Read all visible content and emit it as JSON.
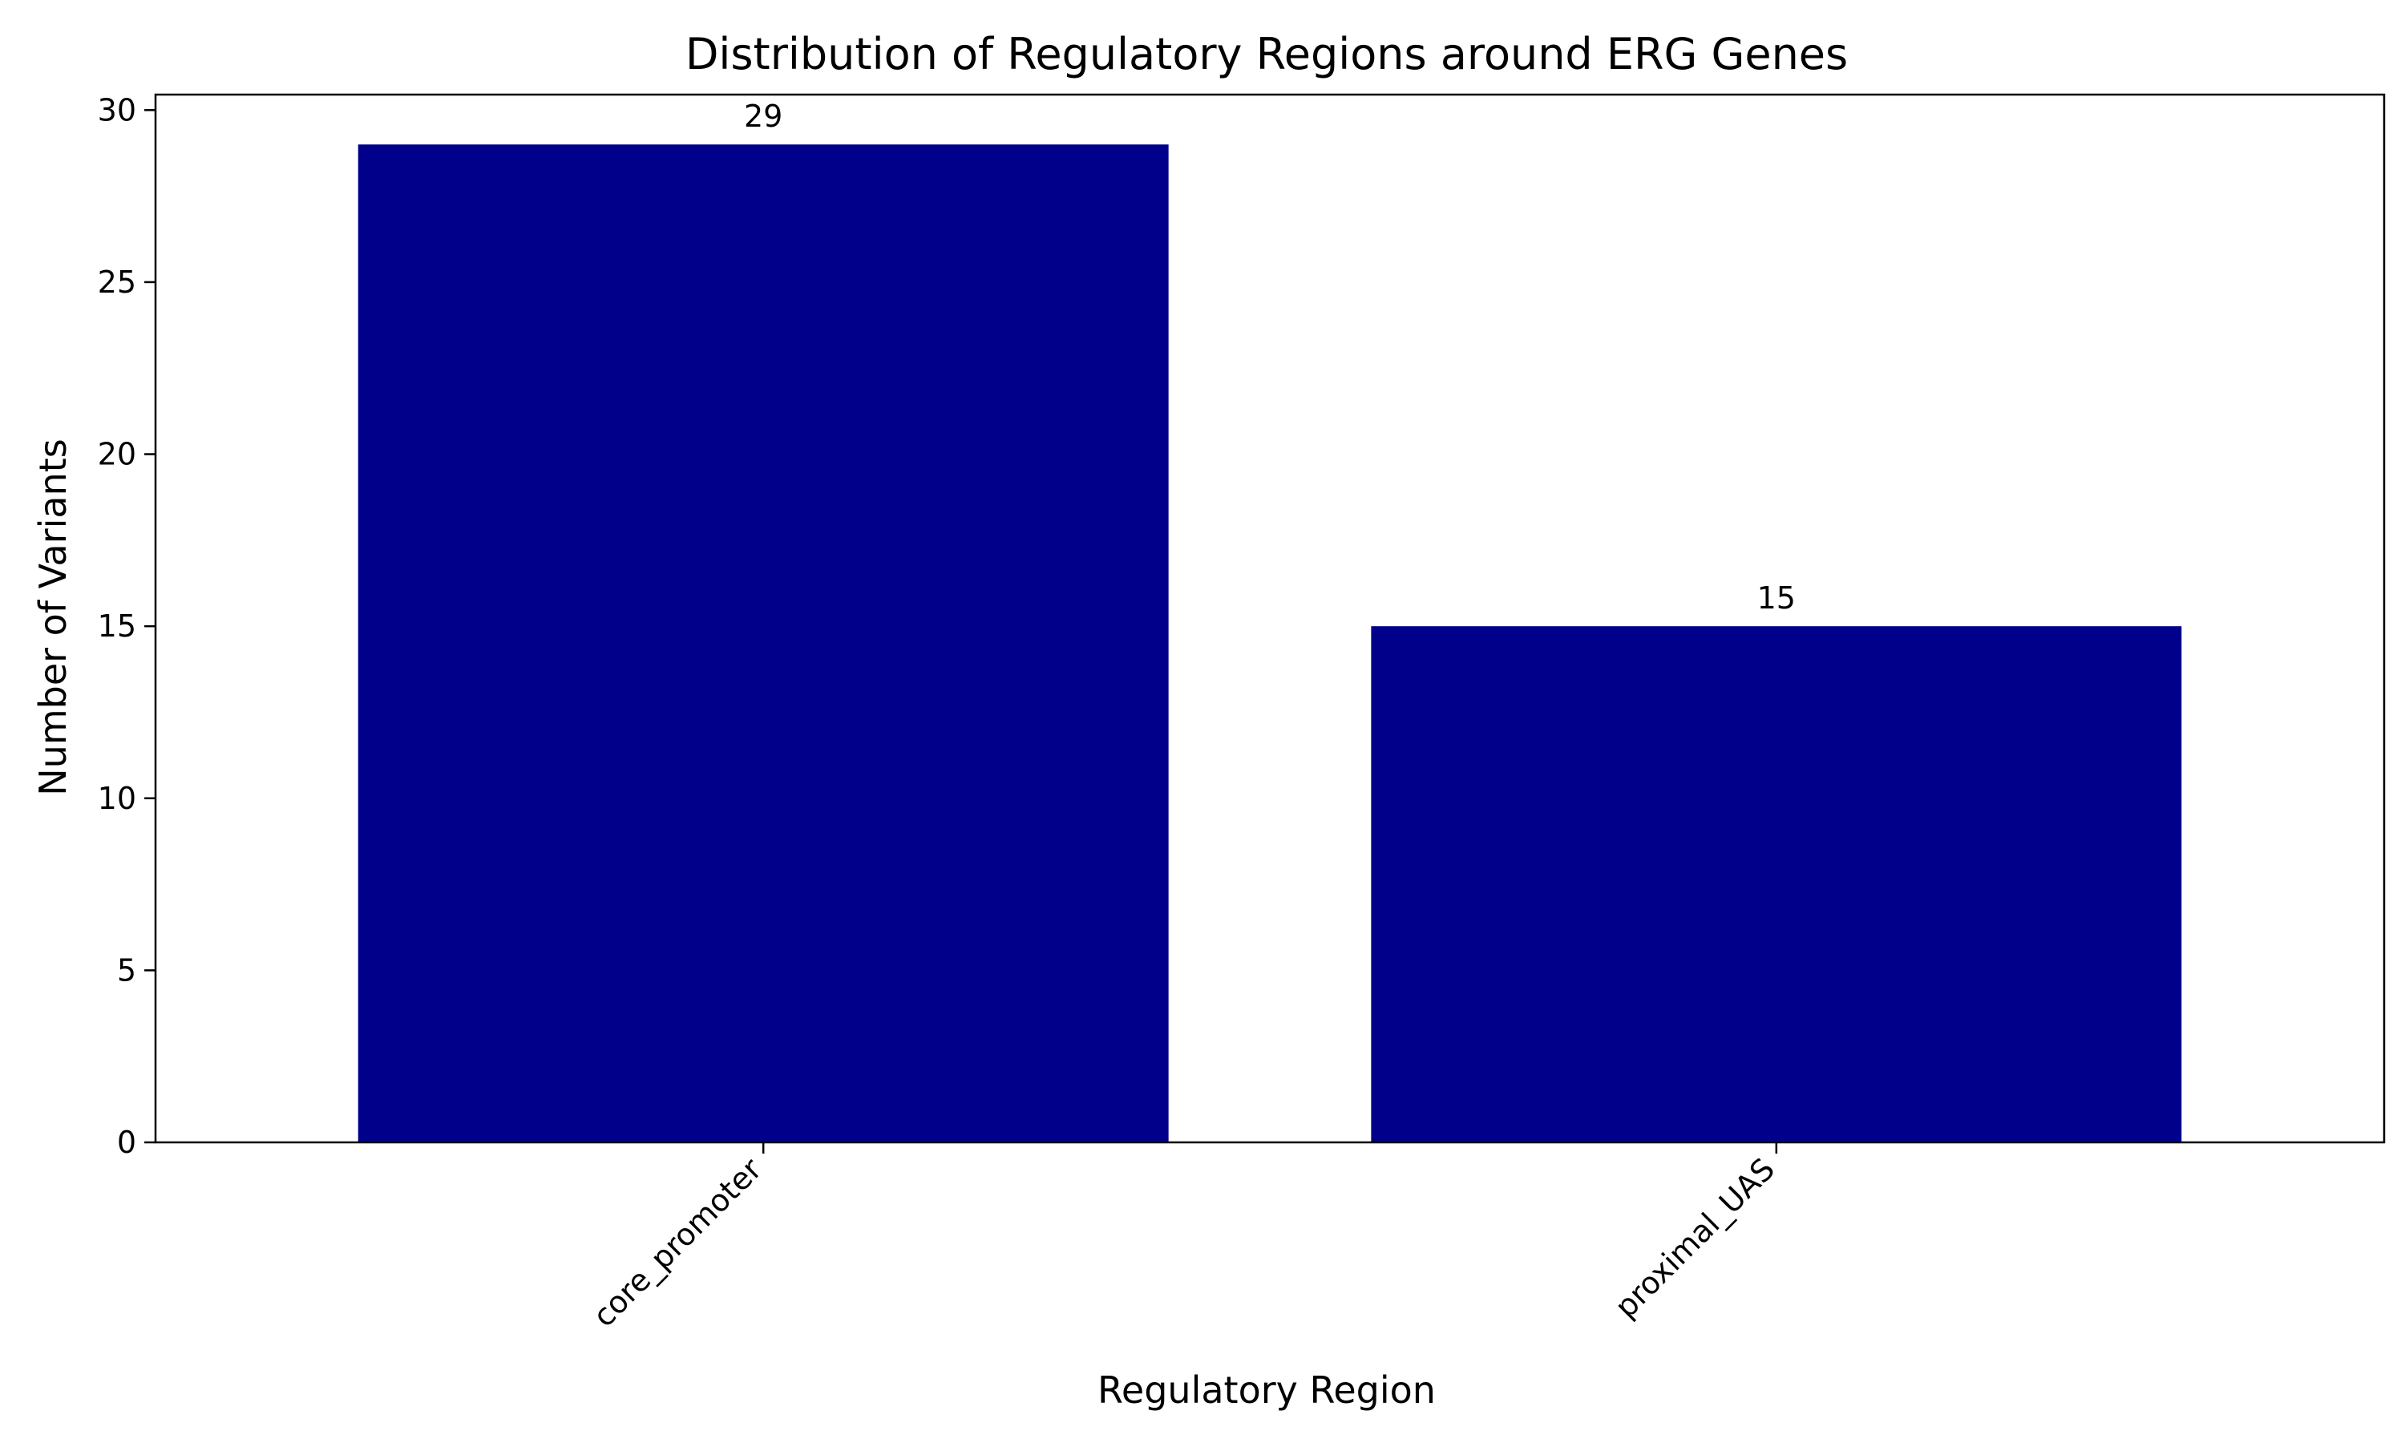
{
  "chart_data": {
    "type": "bar",
    "title": "Distribution of Regulatory Regions around ERG Genes",
    "xlabel": "Regulatory Region",
    "ylabel": "Number of Variants",
    "categories": [
      "core_promoter",
      "proximal_UAS"
    ],
    "values": [
      29,
      15
    ],
    "data_labels": [
      "29",
      "15"
    ],
    "ylim": [
      0,
      30.45
    ],
    "yticks": [
      0,
      5,
      10,
      15,
      20,
      25,
      30
    ],
    "ytick_labels": [
      "0",
      "5",
      "10",
      "15",
      "20",
      "25",
      "30"
    ],
    "bar_color": "#00008b",
    "grid": false,
    "legend": "none"
  }
}
